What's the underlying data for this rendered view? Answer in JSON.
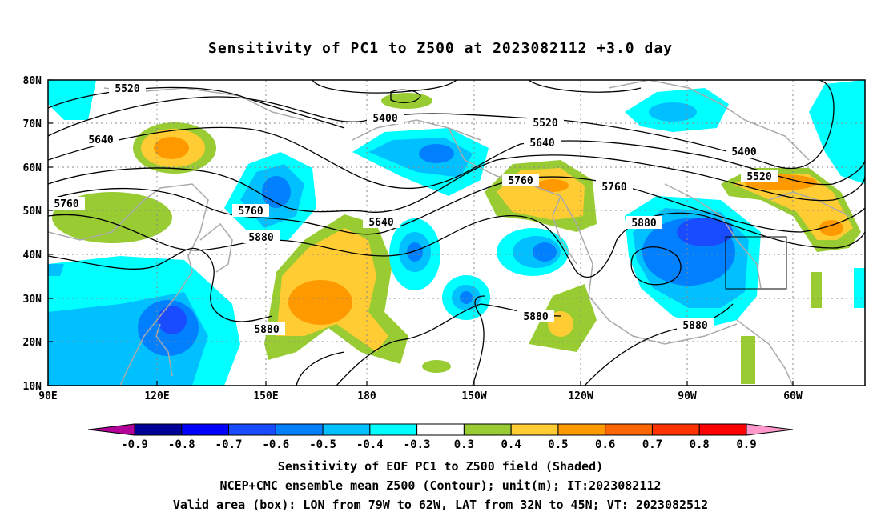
{
  "title": "Sensitivity of PC1 to Z500 at 2023082112 +3.0 day",
  "map": {
    "lat_labels": [
      "80N",
      "70N",
      "60N",
      "50N",
      "40N",
      "30N",
      "20N",
      "10N"
    ],
    "lon_labels": [
      "90E",
      "120E",
      "150E",
      "180",
      "150W",
      "120W",
      "90W",
      "60W"
    ],
    "contour_labels": [
      "5520",
      "5400",
      "5520",
      "5640",
      "5400",
      "5640",
      "5520",
      "5760",
      "5760",
      "5760",
      "5640",
      "5880",
      "5880",
      "5760",
      "5880",
      "5880",
      "5880"
    ],
    "box": {
      "lon_from": "79W",
      "lon_to": "62W",
      "lat_from": "32N",
      "lat_to": "45N"
    }
  },
  "colorbar": {
    "labels": [
      "-0.9",
      "-0.8",
      "-0.7",
      "-0.6",
      "-0.5",
      "-0.4",
      "-0.3",
      "0.3",
      "0.4",
      "0.5",
      "0.6",
      "0.7",
      "0.8",
      "0.9"
    ],
    "colors": [
      "#b30099",
      "#000099",
      "#0000ff",
      "#1a4cff",
      "#0080ff",
      "#00c0ff",
      "#00ffff",
      "#ffffff",
      "#99cc33",
      "#ffcc33",
      "#ff9900",
      "#ff6600",
      "#ff3300",
      "#ff0000",
      "#ff99cc"
    ]
  },
  "footer": {
    "line1": "Sensitivity of EOF PC1 to Z500 field (Shaded)",
    "line2": "NCEP+CMC ensemble mean Z500 (Contour); unit(m); IT:2023082112",
    "line3": "Valid area (box): LON from 79W to 62W, LAT from 32N to 45N; VT: 2023082512"
  }
}
